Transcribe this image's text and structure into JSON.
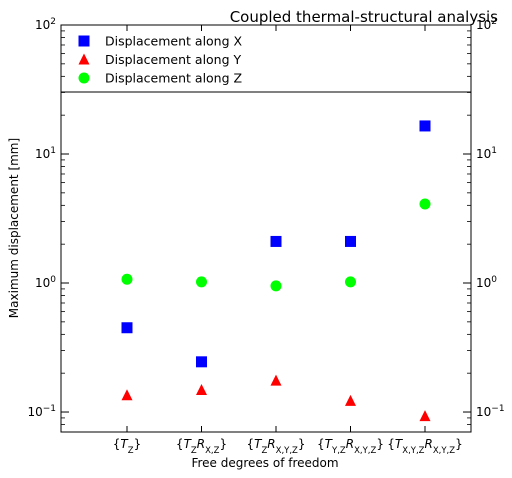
{
  "chart_data": {
    "type": "scatter",
    "title": "Coupled thermal-structural analysis",
    "xlabel": "Free degrees of freedom",
    "ylabel": "Maximum displacement [mm]",
    "yscale": "log",
    "ylim": [
      0.07,
      100
    ],
    "y_ticks": [
      {
        "value": 0.1,
        "base": "10",
        "exp": "−1"
      },
      {
        "value": 1,
        "base": "10",
        "exp": "0"
      },
      {
        "value": 10,
        "base": "10",
        "exp": "1"
      },
      {
        "value": 100,
        "base": "10",
        "exp": "2"
      }
    ],
    "categories": [
      {
        "pre": "{",
        "parts": [
          [
            "T",
            "Z"
          ]
        ],
        "post": "}"
      },
      {
        "pre": "{",
        "parts": [
          [
            "T",
            "Z"
          ],
          [
            "R",
            "X,Z"
          ]
        ],
        "post": "}"
      },
      {
        "pre": "{",
        "parts": [
          [
            "T",
            "Z"
          ],
          [
            "R",
            "X,Y,Z"
          ]
        ],
        "post": "}"
      },
      {
        "pre": "{",
        "parts": [
          [
            "T",
            "Y,Z"
          ],
          [
            "R",
            "X,Y,Z"
          ]
        ],
        "post": "}"
      },
      {
        "pre": "{",
        "parts": [
          [
            "T",
            "X,Y,Z"
          ],
          [
            "R",
            "X,Y,Z"
          ]
        ],
        "post": "}"
      }
    ],
    "series": [
      {
        "name": "Displacement along X",
        "marker": "square",
        "color": "#0000ff",
        "values": [
          0.45,
          0.245,
          2.1,
          2.1,
          16.5
        ]
      },
      {
        "name": "Displacement along Y",
        "marker": "triangle",
        "color": "#ff0000",
        "values": [
          0.135,
          0.148,
          0.175,
          0.122,
          0.093
        ]
      },
      {
        "name": "Displacement along Z",
        "marker": "circle",
        "color": "#00ff00",
        "values": [
          1.07,
          1.02,
          0.95,
          1.02,
          4.1
        ]
      }
    ],
    "legend_position": "top-left",
    "grid": false
  }
}
